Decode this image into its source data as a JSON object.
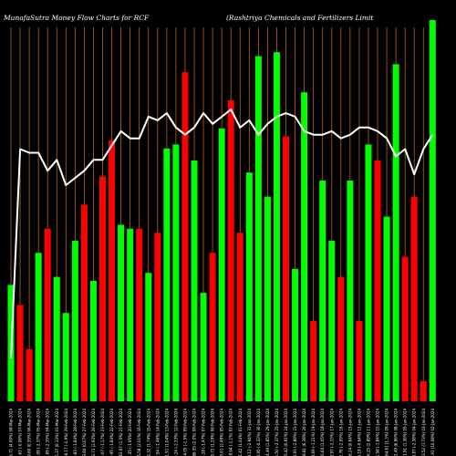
{
  "header": {
    "left_title": "MunafaSutra  Money Flow  Charts for RCF",
    "right_title": "(Rashtriya  Chemicals and Fertilizers Limit"
  },
  "chart_data": {
    "type": "bar",
    "title": "MunafaSutra  Money Flow  Charts for RCF",
    "subtitle": "(Rashtriya  Chemicals and Fertilizers Limit",
    "grid": "vertical",
    "colors": {
      "up": "#00ff00",
      "down": "#ff0000",
      "line": "#ffffff",
      "grid": "#b5651d",
      "background": "#000000"
    },
    "categories": [
      "155.71 (4.09%) 08-Mar-2024",
      "149.63 (-0.06%) 07-Mar-2024",
      "149.60 (0.35%) 06-Mar-2024",
      "149.09 (-2.37%) 05-Mar-2024",
      "152.69 (-2.35%) 04-Mar-2024",
      "156.37 (0.13%) 01-Mar-2024",
      "156.17 (-2.9%) 29-Feb-2024",
      "160.83 (-1.84%) 28-Feb-2024",
      "163.84 (0.07%) 27-Feb-2024",
      "163.73 (2.93%) 26-Feb-2024",
      "159.07 (-1.17%) 23-Feb-2024",
      "160.95 (-1.84%) 22-Feb-2024",
      "163.97 (1.0%) 21-Feb-2024",
      "162.35 (-1.95%) 20-Feb-2024",
      "165.58 (2.01%) 16-Feb-2024",
      "162.32 (1.74%) 15-Feb-2024",
      "159.54 (-1.46%) 14-Feb-2024",
      "161.91 (1.04%) 13-Feb-2024",
      "160.24 (-2.33%) 12-Feb-2024",
      "164.05 (-1.5%) 09-Feb-2024",
      "166.55 (2.0%) 08-Feb-2024",
      "163.28 (-1.47%) 07-Feb-2024",
      "165.72 (1.29%) 06-Feb-2024",
      "163.61 (2.49%) 05-Feb-2024",
      "159.64 (-1.1%) 02-Feb-2024",
      "161.42 (1.44%) 01-Feb-2024",
      "159.12 (-2.94%) 31-Jan-2024",
      "163.95 (-0.33%) 30-Jan-2024",
      "164.49 (1.85%) 29-Jan-2024",
      "161.50 (-2.37%) 25-Jan-2024",
      "165.42 (0.91%) 24-Jan-2024",
      "163.93 (-2.89%) 23-Jan-2024",
      "168.81 (6.38%) 20-Jan-2024",
      "158.69 (-1.21%) 19-Jan-2024",
      "160.64 (1.05%) 18-Jan-2024",
      "158.97 (-2.33%) 17-Jan-2024",
      "162.76 (-2.09%) 16-Jan-2024",
      "166.24 (0.64%) 15-Jan-2024",
      "165.19 (-0.64%) 12-Jan-2024",
      "166.25 (2.89%) 11-Jan-2024",
      "161.58 (-1.84%) 10-Jan-2024",
      "164.61 (1.3%) 09-Jan-2024",
      "162.49 (6.96%) 08-Jan-2024",
      "151.91 (1.36%) 05-Jan-2024",
      "149.87 (-2.38%) 04-Jan-2024",
      "153.52 (1.73%) 03-Jan-2024",
      "150.91 (10.08%) 02-Jan-2024"
    ],
    "series": [
      {
        "role": "money_flow_bars",
        "values": [
          29,
          24,
          13,
          37,
          43,
          31,
          22,
          40,
          49,
          30,
          56,
          65,
          44,
          43,
          43,
          32,
          42,
          63,
          64,
          82,
          60,
          27,
          37,
          68,
          75,
          42,
          57,
          86,
          51,
          87,
          66,
          33,
          77,
          20,
          55,
          40,
          31,
          55,
          20,
          64,
          60,
          46,
          84,
          36,
          51,
          5,
          95
        ],
        "directions": [
          "up",
          "down",
          "down",
          "up",
          "down",
          "up",
          "up",
          "up",
          "down",
          "up",
          "down",
          "down",
          "up",
          "up",
          "down",
          "up",
          "down",
          "up",
          "up",
          "down",
          "up",
          "up",
          "down",
          "up",
          "down",
          "down",
          "up",
          "up",
          "up",
          "up",
          "down",
          "up",
          "up",
          "down",
          "up",
          "up",
          "down",
          "up",
          "down",
          "up",
          "down",
          "up",
          "up",
          "down",
          "down",
          "down",
          "up"
        ]
      },
      {
        "role": "price_line",
        "values": [
          12,
          70,
          69,
          69,
          64,
          67,
          60,
          62,
          64,
          67,
          67,
          71,
          75,
          73,
          73,
          79,
          78,
          80,
          76,
          74,
          76,
          80,
          77,
          79,
          81,
          76,
          78,
          74,
          77,
          79,
          80,
          79,
          75,
          74,
          74,
          75,
          73,
          74,
          76,
          76,
          75,
          73,
          68,
          70,
          63,
          70,
          74
        ]
      }
    ]
  }
}
